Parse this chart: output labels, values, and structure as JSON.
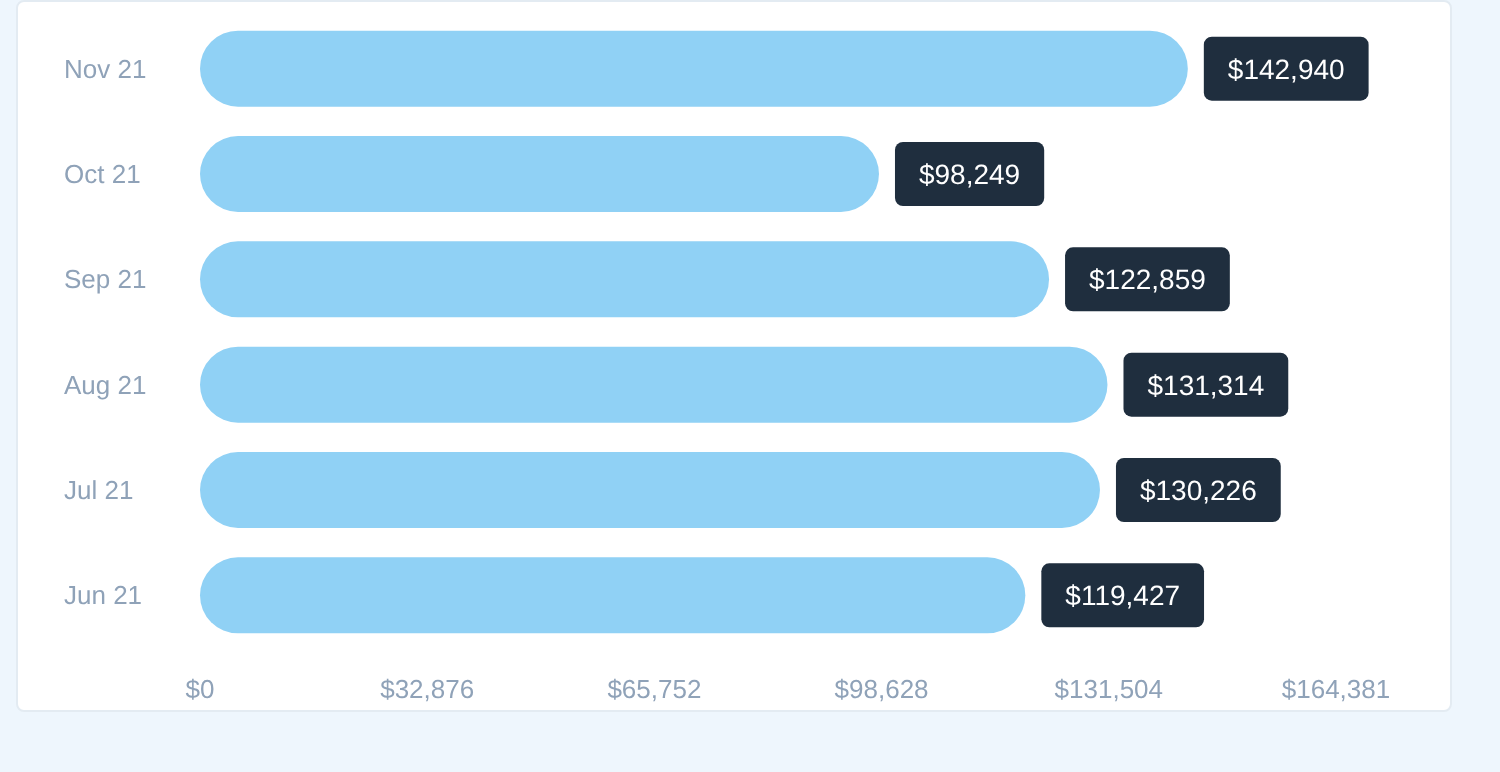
{
  "chart_data": {
    "type": "bar",
    "orientation": "horizontal",
    "categories": [
      "Nov 21",
      "Oct 21",
      "Sep 21",
      "Aug 21",
      "Jul 21",
      "Jun 21"
    ],
    "values": [
      142940,
      98249,
      122859,
      131314,
      130226,
      119427
    ],
    "value_labels": [
      "$142,940",
      "$98,249",
      "$122,859",
      "$131,314",
      "$130,226",
      "$119,427"
    ],
    "color": "#90d1f5",
    "grid": false,
    "xlim": [
      0,
      164381
    ],
    "xticks": [
      {
        "value": 0,
        "label": "$0"
      },
      {
        "value": 32876,
        "label": "$32,876"
      },
      {
        "value": 65752,
        "label": "$65,752"
      },
      {
        "value": 98628,
        "label": "$98,628"
      },
      {
        "value": 131504,
        "label": "$131,504"
      },
      {
        "value": 164381,
        "label": "$164,381"
      }
    ]
  }
}
